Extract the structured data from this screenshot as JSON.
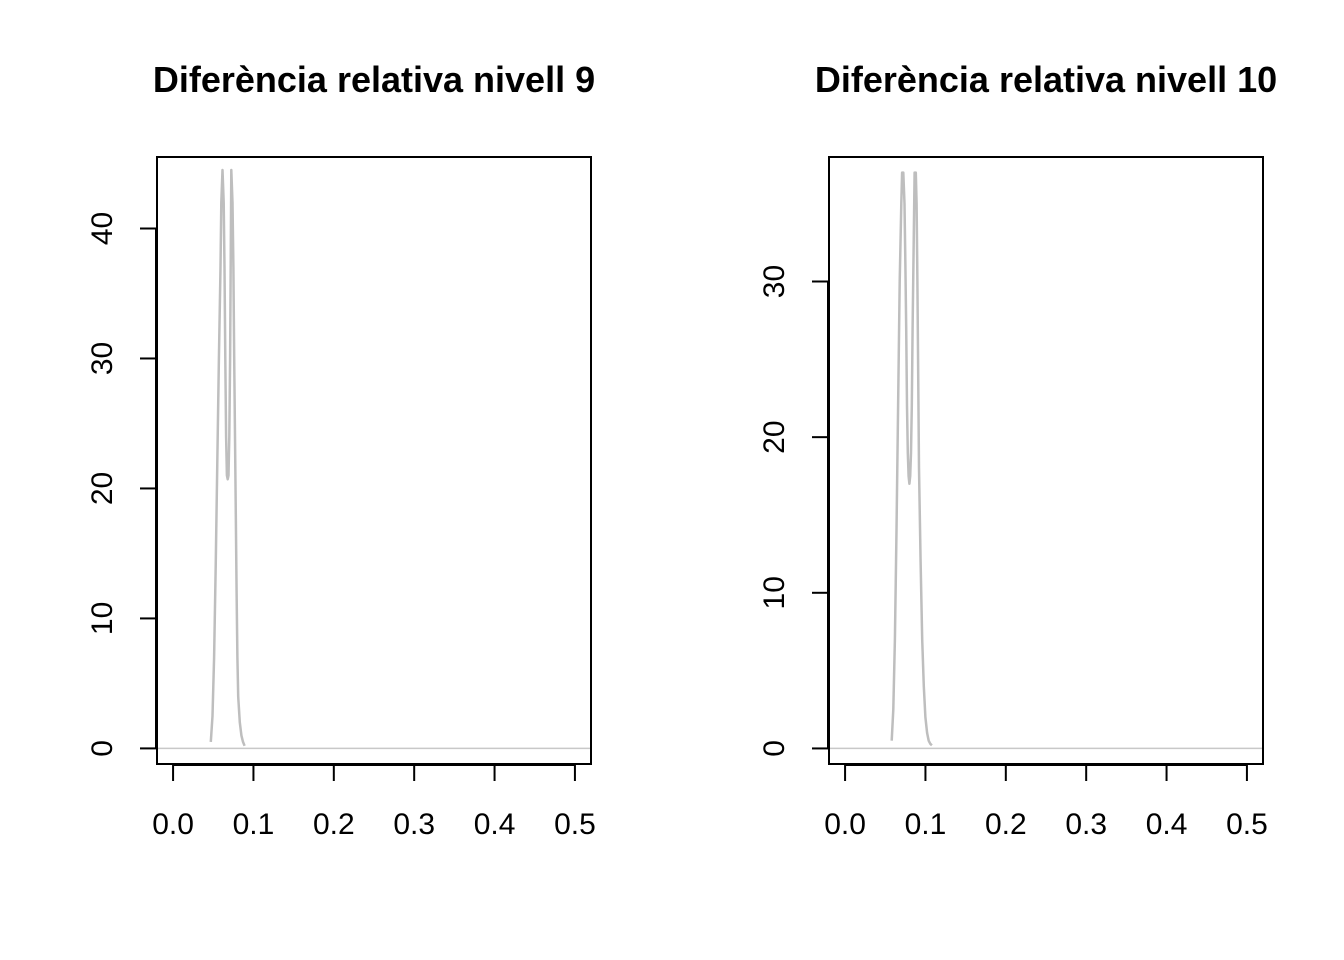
{
  "chart_data": [
    {
      "type": "line",
      "title": "Diferència relativa nivell 9",
      "xlabel": "",
      "ylabel": "",
      "xlim": [
        -0.02,
        0.52
      ],
      "ylim": [
        -1.2,
        45.5
      ],
      "x_ticks": [
        0.0,
        0.1,
        0.2,
        0.3,
        0.4,
        0.5
      ],
      "x_tick_labels": [
        "0.0",
        "0.1",
        "0.2",
        "0.3",
        "0.4",
        "0.5"
      ],
      "y_ticks": [
        0,
        10,
        20,
        30,
        40
      ],
      "y_tick_labels": [
        "0",
        "10",
        "20",
        "30",
        "40"
      ],
      "baseline": 0,
      "grid": false,
      "series": [
        {
          "color": "#bebebe",
          "x": [
            0.047,
            0.049,
            0.051,
            0.053,
            0.055,
            0.057,
            0.059,
            0.06,
            0.0615,
            0.063,
            0.064,
            0.065,
            0.066,
            0.067,
            0.068,
            0.069,
            0.07,
            0.071,
            0.0725,
            0.074,
            0.075,
            0.076,
            0.077,
            0.078,
            0.079,
            0.08,
            0.081,
            0.083,
            0.085,
            0.087,
            0.089
          ],
          "y": [
            0.5,
            2.5,
            7,
            14,
            22,
            30,
            37,
            42,
            44.5,
            42,
            37,
            30,
            24,
            21,
            20.7,
            21,
            24,
            30,
            44.5,
            42,
            37,
            30,
            24,
            18,
            12,
            7,
            4,
            2,
            1,
            0.5,
            0.2
          ]
        }
      ]
    },
    {
      "type": "line",
      "title": "Diferència relativa nivell 10",
      "xlabel": "",
      "ylabel": "",
      "xlim": [
        -0.02,
        0.52
      ],
      "ylim": [
        -1.0,
        38.0
      ],
      "x_ticks": [
        0.0,
        0.1,
        0.2,
        0.3,
        0.4,
        0.5
      ],
      "x_tick_labels": [
        "0.0",
        "0.1",
        "0.2",
        "0.3",
        "0.4",
        "0.5"
      ],
      "y_ticks": [
        0,
        10,
        20,
        30
      ],
      "y_tick_labels": [
        "0",
        "10",
        "20",
        "30"
      ],
      "baseline": 0,
      "grid": false,
      "series": [
        {
          "color": "#bebebe",
          "x": [
            0.058,
            0.06,
            0.062,
            0.064,
            0.066,
            0.068,
            0.07,
            0.071,
            0.0725,
            0.074,
            0.075,
            0.076,
            0.077,
            0.078,
            0.079,
            0.08,
            0.081,
            0.082,
            0.083,
            0.084,
            0.085,
            0.0865,
            0.088,
            0.089,
            0.09,
            0.091,
            0.092,
            0.094,
            0.096,
            0.098,
            0.1,
            0.102,
            0.104,
            0.106,
            0.108
          ],
          "y": [
            0.5,
            2.5,
            7,
            14,
            22,
            30,
            35,
            37,
            37,
            35,
            31,
            27,
            22,
            19,
            17.5,
            17,
            17.5,
            19,
            22,
            27,
            31,
            37,
            37,
            35,
            30,
            24,
            18,
            12,
            7,
            4,
            2,
            1,
            0.5,
            0.3,
            0.2
          ]
        }
      ]
    }
  ]
}
